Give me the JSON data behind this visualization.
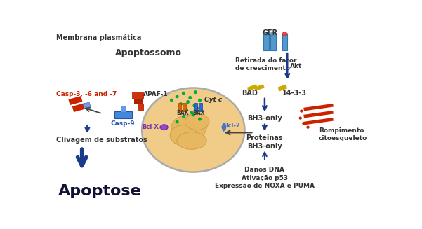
{
  "bg_color": "#ffffff",
  "membrane_color": "#b0b0b0",
  "arrow_color": "#1a3a8a",
  "red_color": "#cc2200",
  "blue_color": "#2255bb",
  "blue_casp9": "#4488dd",
  "yellow_color": "#ccaa00",
  "purple_color": "#7733aa",
  "green_dot": "#00aa44",
  "mito_fill": "#f0cc88",
  "mito_inner": "#e8b860",
  "mito_stroke": "#aaaaaa",
  "red_stripe": "#cc2200",
  "text_membrana": "Membrana plasmática",
  "text_apoptossomo": "Apoptossomo",
  "text_casp367": "Casp-3, -6 and -7",
  "text_apaf1": "APAF-1",
  "text_cytc": "Cyt c",
  "text_casp9": "Casp-9",
  "text_bak": "BAK",
  "text_bax": "BAX",
  "text_bclxl": "Bcl-Xₗ",
  "text_bcl2": "Bcl-2",
  "text_clivagem": "Clivagem de substratos",
  "text_apoptose": "Apoptose",
  "text_gfr": "GFR",
  "text_retirada": "Retirada do fator\nde crescimento",
  "text_akt": "Akt",
  "text_bad": "BAD",
  "text_1433": "14-3-3",
  "text_rompimento": "Rompimento\ncitoesqueleto",
  "text_bh3only": "BH3-only",
  "text_proteinas": "Proteinas\nBH3-only",
  "text_danos": "Danos DNA\nAtivação p53\nExpressão de NOXA e PUMA"
}
